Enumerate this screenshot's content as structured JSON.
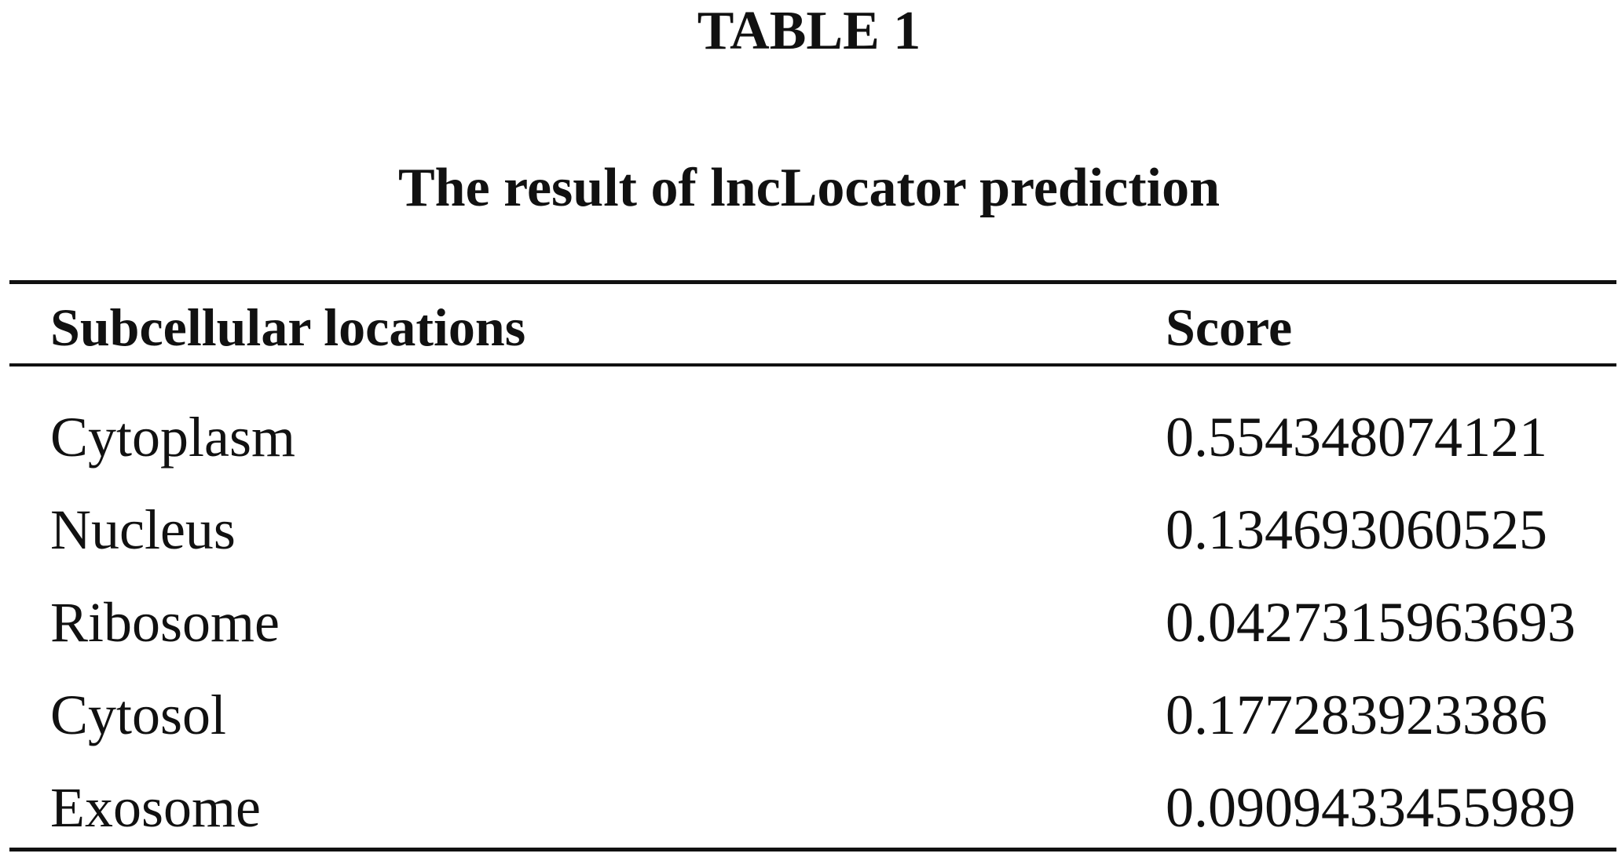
{
  "table": {
    "label": "TABLE 1",
    "caption": "The result of lncLocator prediction",
    "headers": {
      "location": "Subcellular locations",
      "score": "Score"
    },
    "rows": [
      {
        "location": "Cytoplasm",
        "score": "0.554348074121"
      },
      {
        "location": "Nucleus",
        "score": "0.134693060525"
      },
      {
        "location": "Ribosome",
        "score": "0.0427315963693"
      },
      {
        "location": "Cytosol",
        "score": "0.177283923386"
      },
      {
        "location": "Exosome",
        "score": "0.0909433455989"
      }
    ]
  }
}
